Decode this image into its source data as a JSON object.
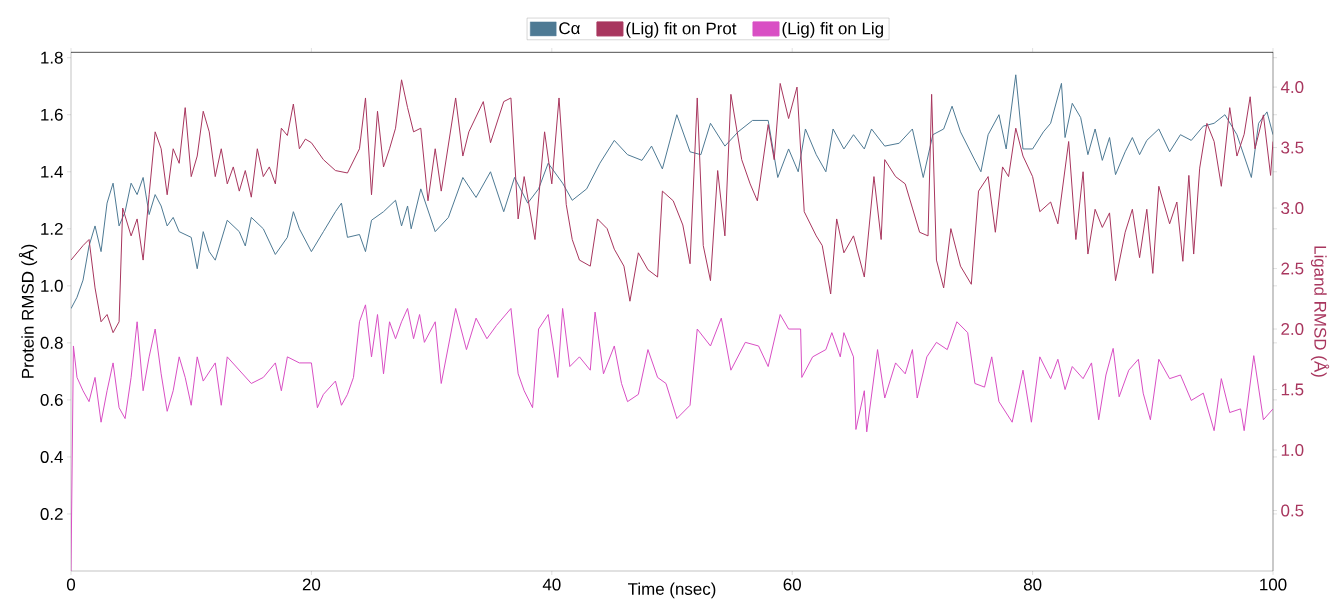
{
  "chart_data": {
    "type": "line",
    "xlabel": "Time (nsec)",
    "ylabel": "Protein RMSD (Å)",
    "y2label": "Ligand RMSD (Å)",
    "xlim": [
      0,
      100
    ],
    "xticks": [
      0,
      20,
      40,
      60,
      80,
      100
    ],
    "ylim": [
      0,
      1.82
    ],
    "yticks": [
      0.2,
      0.4,
      0.6,
      0.8,
      {
        "value": 1,
        "label": "1.0"
      },
      1.2,
      1.4,
      1.6,
      1.8
    ],
    "y2lim": [
      0,
      4.29
    ],
    "y2ticks": [
      0.5,
      {
        "value": 1,
        "label": "1.0"
      },
      1.5,
      {
        "value": 2,
        "label": "2.0"
      },
      2.5,
      {
        "value": 3,
        "label": "3.0"
      },
      3.5,
      {
        "value": 4,
        "label": "4.0"
      }
    ],
    "legend": "top",
    "marker": "none",
    "series": [
      {
        "name": "Cα",
        "color": "#4e7a94",
        "x": [
          0,
          0.5,
          1,
          1.5,
          2,
          2.5,
          3,
          3.5,
          4,
          4.5,
          5,
          5.5,
          6,
          6.5,
          7,
          7.5,
          8,
          8.5,
          9,
          10,
          10.5,
          11,
          11.5,
          12,
          13,
          14,
          14.5,
          15,
          16,
          17,
          18,
          18.5,
          19,
          20,
          21,
          22,
          22.5,
          23,
          24,
          24.5,
          25,
          26,
          27,
          27.5,
          28,
          28.3,
          29.1,
          30.3,
          31.4,
          32.6,
          33.7,
          34.9,
          36,
          36.9,
          38,
          38.9,
          39.7,
          40.9,
          41.7,
          42.9,
          44,
          45.2,
          46.3,
          47.5,
          48.3,
          49.2,
          50.4,
          51.5,
          52.4,
          53.2,
          54.4,
          55.5,
          56.7,
          58,
          58.8,
          59.7,
          60.5,
          61.1,
          62,
          62.8,
          63.4,
          64.3,
          65.1,
          66,
          66.6,
          67.7,
          68.9,
          70,
          70.9,
          71.7,
          72.6,
          73.3,
          74,
          75.2,
          75.7,
          76.3,
          77.2,
          77.8,
          78.6,
          79.2,
          80,
          80.9,
          81.5,
          82.4,
          82.7,
          83.3,
          84,
          84.6,
          85.2,
          85.8,
          86.4,
          86.9,
          87.7,
          88.3,
          88.9,
          89.5,
          90.5,
          91.4,
          92.3,
          93.2,
          94.2,
          95.1,
          96,
          97,
          98.2,
          98.8,
          99.5,
          100
        ],
        "values": [
          0.92,
          0.96,
          1.02,
          1.14,
          1.21,
          1.12,
          1.29,
          1.36,
          1.21,
          1.26,
          1.36,
          1.32,
          1.38,
          1.25,
          1.32,
          1.28,
          1.21,
          1.24,
          1.19,
          1.17,
          1.06,
          1.19,
          1.12,
          1.09,
          1.23,
          1.19,
          1.14,
          1.24,
          1.2,
          1.11,
          1.17,
          1.26,
          1.2,
          1.12,
          1.19,
          1.26,
          1.29,
          1.17,
          1.18,
          1.12,
          1.23,
          1.26,
          1.3,
          1.21,
          1.28,
          1.2,
          1.34,
          1.19,
          1.24,
          1.38,
          1.31,
          1.4,
          1.26,
          1.38,
          1.29,
          1.34,
          1.43,
          1.36,
          1.3,
          1.34,
          1.43,
          1.51,
          1.46,
          1.44,
          1.49,
          1.41,
          1.6,
          1.47,
          1.46,
          1.57,
          1.49,
          1.54,
          1.58,
          1.58,
          1.38,
          1.48,
          1.4,
          1.55,
          1.46,
          1.4,
          1.55,
          1.48,
          1.53,
          1.48,
          1.55,
          1.49,
          1.5,
          1.55,
          1.38,
          1.53,
          1.55,
          1.63,
          1.54,
          1.44,
          1.4,
          1.53,
          1.6,
          1.48,
          1.74,
          1.48,
          1.48,
          1.54,
          1.57,
          1.71,
          1.52,
          1.64,
          1.59,
          1.46,
          1.55,
          1.44,
          1.52,
          1.39,
          1.47,
          1.52,
          1.46,
          1.51,
          1.55,
          1.47,
          1.53,
          1.51,
          1.56,
          1.57,
          1.6,
          1.53,
          1.38,
          1.57,
          1.61,
          1.53
        ]
      },
      {
        "name": "(Lig) fit on Prot",
        "color": "#a8365e",
        "axis": "y2",
        "x": [
          0,
          1,
          1.5,
          2,
          2.5,
          3,
          3.5,
          4,
          4.3,
          5,
          5.5,
          6,
          6.5,
          7,
          7.5,
          8,
          8.5,
          9,
          9.5,
          10,
          10.5,
          11,
          11.5,
          12,
          12.5,
          13,
          13.5,
          14,
          14.5,
          15,
          15.5,
          16,
          16.5,
          17,
          17.5,
          18,
          18.5,
          19,
          19.5,
          20,
          21,
          22,
          23,
          24,
          24.5,
          25,
          25.5,
          26,
          26.5,
          27,
          27.5,
          28,
          28.5,
          29.1,
          29.7,
          30.3,
          30.8,
          32,
          32.6,
          33.1,
          34.3,
          34.9,
          36,
          36.6,
          37.2,
          37.7,
          38.6,
          39.4,
          40,
          40.6,
          41.2,
          41.7,
          42.3,
          43.2,
          43.8,
          44.6,
          45.2,
          46,
          46.5,
          47.2,
          48,
          48.8,
          49.2,
          50.1,
          50.9,
          51.5,
          52.1,
          52.6,
          53.2,
          53.8,
          54.4,
          54.9,
          55.8,
          56.5,
          57.1,
          58,
          58.5,
          59,
          59.7,
          60.4,
          61,
          62,
          62.5,
          63.2,
          63.7,
          64.3,
          65.1,
          66,
          66.8,
          67.4,
          67.7,
          68.6,
          69.4,
          70,
          70.6,
          71.3,
          71.6,
          72,
          72.6,
          73.2,
          74,
          74.9,
          75.5,
          76.3,
          76.9,
          77.5,
          78,
          78.6,
          79.2,
          80,
          80.6,
          81.5,
          82.1,
          83,
          83.6,
          84.2,
          84.6,
          85.2,
          85.8,
          86.4,
          86.9,
          87.7,
          88.3,
          88.9,
          89.5,
          90,
          90.5,
          91.4,
          92,
          92.5,
          93,
          93.4,
          93.9,
          94.5,
          95.1,
          95.7,
          96.4,
          97,
          97.6,
          98.1,
          98.5,
          99.2,
          99.8,
          100
        ],
        "values": [
          2.57,
          2.69,
          2.74,
          2.34,
          2.06,
          2.12,
          1.97,
          2.06,
          3.0,
          2.77,
          2.91,
          2.57,
          3.11,
          3.63,
          3.49,
          3.11,
          3.49,
          3.37,
          3.83,
          3.26,
          3.43,
          3.8,
          3.63,
          3.26,
          3.49,
          3.2,
          3.34,
          3.14,
          3.31,
          3.09,
          3.49,
          3.26,
          3.34,
          3.2,
          3.66,
          3.6,
          3.86,
          3.49,
          3.57,
          3.54,
          3.4,
          3.31,
          3.29,
          3.49,
          3.91,
          3.11,
          3.8,
          3.34,
          3.49,
          3.66,
          4.06,
          3.83,
          3.63,
          3.66,
          3.06,
          3.49,
          3.14,
          3.91,
          3.43,
          3.63,
          3.88,
          3.54,
          3.88,
          3.91,
          2.91,
          3.26,
          2.74,
          3.63,
          3.2,
          3.91,
          3.03,
          2.74,
          2.57,
          2.52,
          2.91,
          2.83,
          2.66,
          2.52,
          2.23,
          2.63,
          2.49,
          2.43,
          3.14,
          3.06,
          2.86,
          2.54,
          3.91,
          2.69,
          2.4,
          3.31,
          2.77,
          3.94,
          3.4,
          3.2,
          3.06,
          3.69,
          3.4,
          4.03,
          3.74,
          4.0,
          2.97,
          2.77,
          2.69,
          2.29,
          2.91,
          2.63,
          2.77,
          2.43,
          3.26,
          2.74,
          3.4,
          3.26,
          3.2,
          3.0,
          2.8,
          2.77,
          3.94,
          2.57,
          2.34,
          2.83,
          2.52,
          2.37,
          3.14,
          3.26,
          2.8,
          3.34,
          3.26,
          3.66,
          3.43,
          3.26,
          2.97,
          3.05,
          2.87,
          3.55,
          2.74,
          3.3,
          2.62,
          2.99,
          2.84,
          2.96,
          2.4,
          2.8,
          2.99,
          2.59,
          2.99,
          2.46,
          3.18,
          2.87,
          3.05,
          2.56,
          3.27,
          2.62,
          3.33,
          3.7,
          3.55,
          3.18,
          3.83,
          3.43,
          3.61,
          3.92,
          3.49,
          3.77,
          3.27,
          3.55
        ]
      },
      {
        "name": "(Lig) fit on Lig",
        "color": "#d94fc4",
        "axis": "y2",
        "x": [
          0,
          0.2,
          0.5,
          1,
          1.5,
          2,
          2.5,
          3,
          3.5,
          4,
          4.5,
          5,
          5.5,
          6,
          6.5,
          7,
          7.5,
          8,
          8.5,
          9,
          9.5,
          10,
          10.5,
          11,
          12,
          12.5,
          13,
          14,
          15,
          16,
          17,
          17.5,
          18,
          19,
          20,
          20.5,
          21,
          22,
          22.5,
          23,
          23.5,
          24,
          24.5,
          25,
          25.5,
          26,
          26.5,
          27,
          27.5,
          28,
          28.5,
          29,
          29.4,
          30.3,
          30.8,
          32,
          32.9,
          33.7,
          34.6,
          35.4,
          36.6,
          37.2,
          37.7,
          38.4,
          38.9,
          39.7,
          40.5,
          40.9,
          41.5,
          42.3,
          43.2,
          43.6,
          44.3,
          45.2,
          45.8,
          46.3,
          47.2,
          48,
          48.8,
          49.5,
          50.4,
          51.5,
          52.1,
          53.2,
          54.1,
          54.9,
          56.1,
          57.2,
          58,
          59,
          59.7,
          60.7,
          60.8,
          61.7,
          62.8,
          63.3,
          64,
          64.3,
          65.1,
          65.3,
          66,
          66.2,
          67.1,
          67.7,
          68.6,
          69.4,
          70,
          70.4,
          71.2,
          72,
          72.9,
          73.7,
          74.6,
          75.2,
          76,
          76.6,
          77.2,
          78.3,
          79.2,
          79.9,
          80.6,
          81.5,
          82.1,
          82.7,
          83.3,
          84.2,
          84.9,
          85.5,
          86.1,
          86.7,
          87.2,
          88,
          88.8,
          89.2,
          89.8,
          90.5,
          91.4,
          92.3,
          93.2,
          94.2,
          95.1,
          95.7,
          96.4,
          97.3,
          97.6,
          98.4,
          99.2,
          100
        ],
        "values": [
          0,
          1.86,
          1.6,
          1.49,
          1.4,
          1.6,
          1.23,
          1.49,
          1.72,
          1.35,
          1.26,
          1.6,
          2.06,
          1.49,
          1.77,
          2.0,
          1.63,
          1.32,
          1.49,
          1.77,
          1.6,
          1.37,
          1.77,
          1.57,
          1.72,
          1.37,
          1.77,
          1.66,
          1.55,
          1.6,
          1.72,
          1.49,
          1.77,
          1.72,
          1.72,
          1.35,
          1.46,
          1.57,
          1.37,
          1.46,
          1.6,
          2.06,
          2.2,
          1.77,
          2.12,
          1.63,
          2.06,
          1.92,
          2.06,
          2.17,
          1.92,
          2.12,
          1.89,
          2.06,
          1.55,
          2.17,
          1.83,
          2.09,
          1.92,
          2.03,
          2.17,
          1.63,
          1.49,
          1.35,
          2.0,
          2.12,
          1.6,
          2.17,
          1.69,
          1.77,
          1.66,
          2.14,
          1.63,
          1.86,
          1.55,
          1.4,
          1.46,
          1.83,
          1.6,
          1.55,
          1.26,
          1.37,
          2.0,
          1.86,
          2.09,
          1.66,
          1.89,
          1.86,
          1.69,
          2.12,
          2.0,
          2.0,
          1.6,
          1.77,
          1.83,
          1.97,
          1.77,
          1.97,
          1.77,
          1.17,
          1.49,
          1.15,
          1.83,
          1.43,
          1.72,
          1.63,
          1.83,
          1.43,
          1.77,
          1.89,
          1.83,
          2.06,
          1.97,
          1.55,
          1.52,
          1.77,
          1.4,
          1.23,
          1.66,
          1.23,
          1.77,
          1.59,
          1.75,
          1.5,
          1.69,
          1.59,
          1.72,
          1.25,
          1.62,
          1.84,
          1.44,
          1.66,
          1.75,
          1.47,
          1.25,
          1.75,
          1.59,
          1.62,
          1.41,
          1.47,
          1.16,
          1.59,
          1.31,
          1.34,
          1.16,
          1.78,
          1.25,
          1.34
        ]
      }
    ]
  }
}
